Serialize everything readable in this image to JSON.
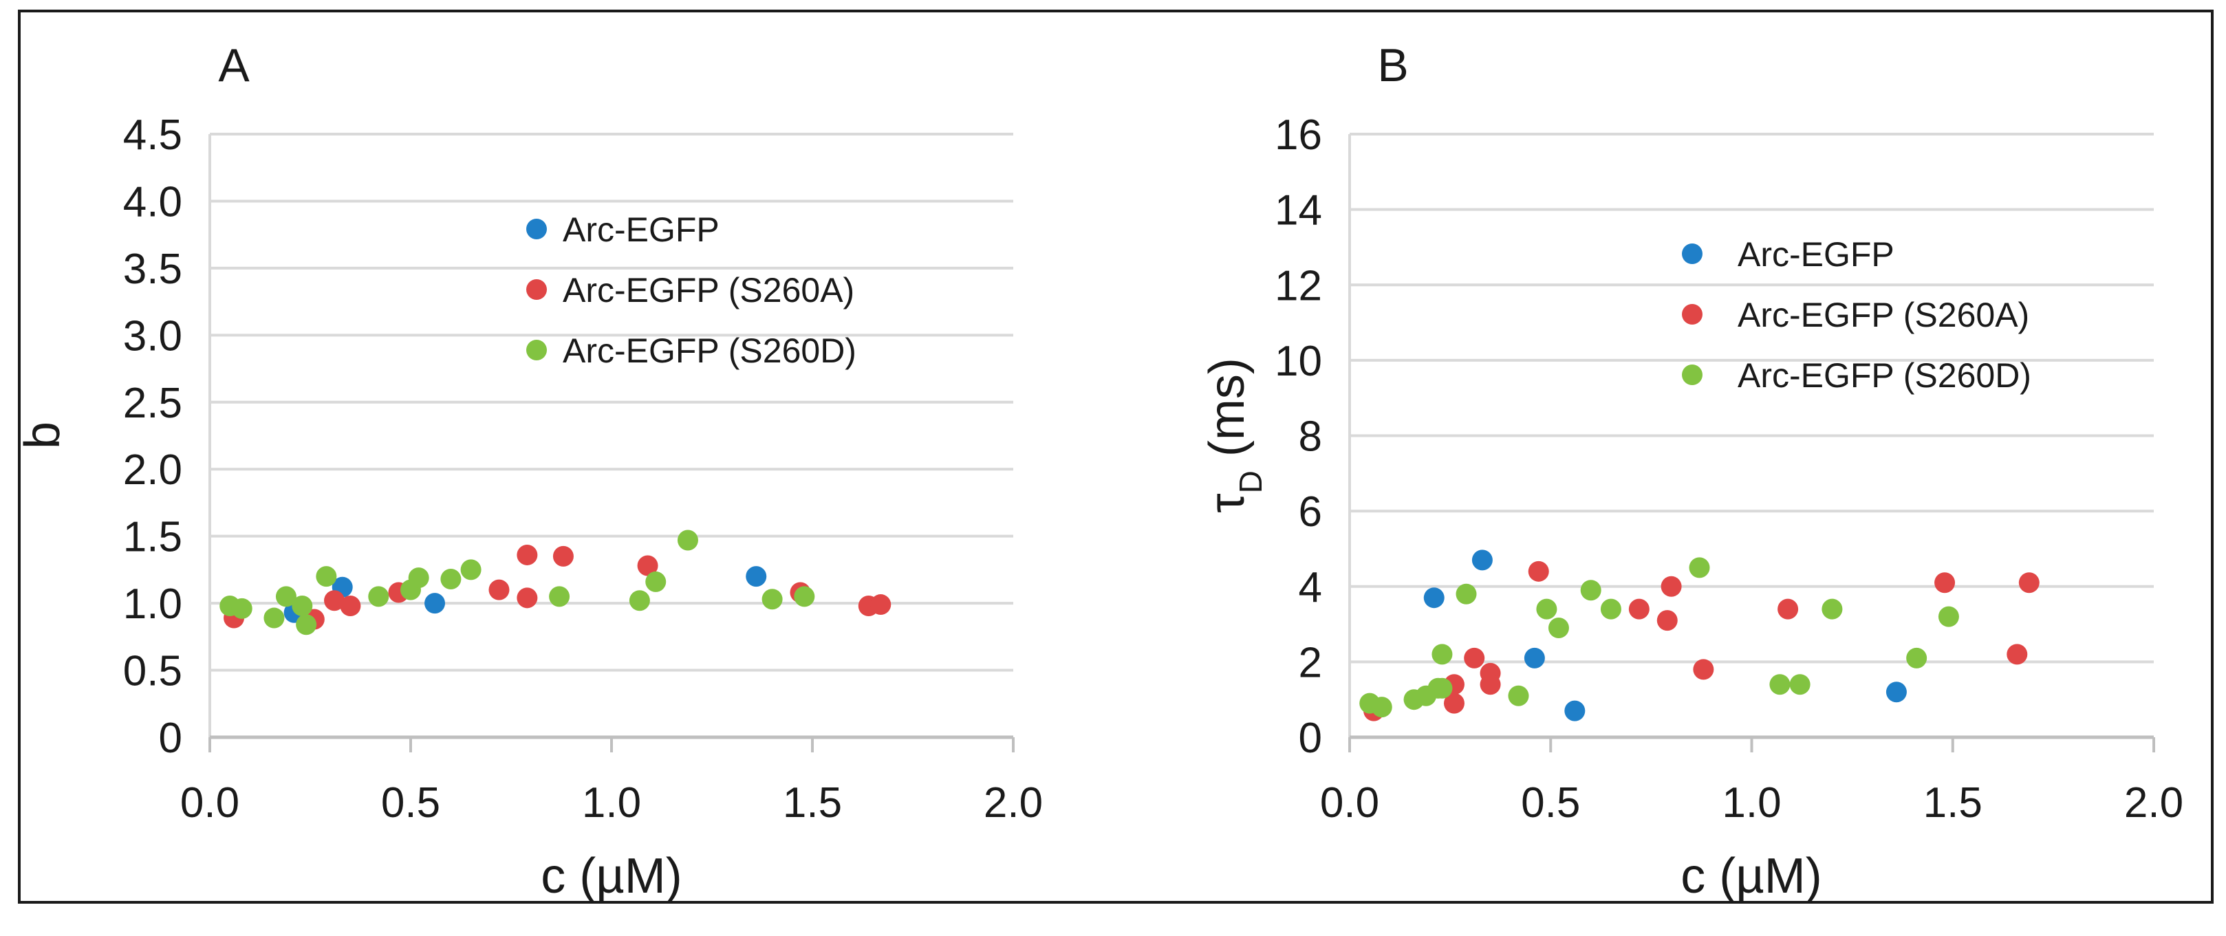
{
  "chart_data": [
    {
      "panel_label": "A",
      "type": "scatter",
      "xlabel": "c (µM)",
      "ylabel": "b",
      "xlim": [
        0,
        2
      ],
      "ylim": [
        0,
        4.5
      ],
      "x_ticks": [
        "0.0",
        "0.5",
        "1.0",
        "1.5",
        "2.0"
      ],
      "y_ticks": [
        "0",
        "0.5",
        "1.0",
        "1.5",
        "2.0",
        "2.5",
        "3.0",
        "3.5",
        "4.0",
        "4.5"
      ],
      "grid": true,
      "legend_position": "upper-center",
      "series": [
        {
          "name": "Arc-EGFP",
          "color": "#1f7fc8",
          "points": [
            [
              0.21,
              0.93
            ],
            [
              0.33,
              1.12
            ],
            [
              0.56,
              1.0
            ],
            [
              1.36,
              1.2
            ]
          ]
        },
        {
          "name": "Arc-EGFP (S260A)",
          "color": "#e04646",
          "points": [
            [
              0.06,
              0.89
            ],
            [
              0.26,
              0.88
            ],
            [
              0.31,
              1.02
            ],
            [
              0.35,
              0.98
            ],
            [
              0.47,
              1.08
            ],
            [
              0.72,
              1.1
            ],
            [
              0.79,
              1.04
            ],
            [
              0.79,
              1.36
            ],
            [
              0.88,
              1.35
            ],
            [
              1.09,
              1.28
            ],
            [
              1.47,
              1.08
            ],
            [
              1.64,
              0.98
            ],
            [
              1.67,
              0.99
            ]
          ]
        },
        {
          "name": "Arc-EGFP (S260D)",
          "color": "#82c341",
          "points": [
            [
              0.05,
              0.98
            ],
            [
              0.08,
              0.96
            ],
            [
              0.16,
              0.89
            ],
            [
              0.19,
              1.05
            ],
            [
              0.23,
              0.98
            ],
            [
              0.24,
              0.84
            ],
            [
              0.29,
              1.2
            ],
            [
              0.42,
              1.05
            ],
            [
              0.5,
              1.1
            ],
            [
              0.52,
              1.19
            ],
            [
              0.6,
              1.18
            ],
            [
              0.65,
              1.25
            ],
            [
              0.87,
              1.05
            ],
            [
              1.07,
              1.02
            ],
            [
              1.11,
              1.16
            ],
            [
              1.19,
              1.47
            ],
            [
              1.4,
              1.03
            ],
            [
              1.48,
              1.05
            ]
          ]
        }
      ]
    },
    {
      "panel_label": "B",
      "type": "scatter",
      "xlabel": "c (µM)",
      "ylabel": "τ",
      "ylabel_sub": "D",
      "ylabel_unit": " (ms)",
      "xlim": [
        0,
        2
      ],
      "ylim": [
        0,
        16
      ],
      "x_ticks": [
        "0.0",
        "0.5",
        "1.0",
        "1.5",
        "2.0"
      ],
      "y_ticks": [
        "0",
        "2",
        "4",
        "6",
        "8",
        "10",
        "12",
        "14",
        "16"
      ],
      "grid": true,
      "legend_position": "upper-right",
      "series": [
        {
          "name": "Arc-EGFP",
          "color": "#1f7fc8",
          "points": [
            [
              0.21,
              3.7
            ],
            [
              0.33,
              4.7
            ],
            [
              0.46,
              2.1
            ],
            [
              0.56,
              0.7
            ],
            [
              1.36,
              1.2
            ]
          ]
        },
        {
          "name": "Arc-EGFP (S260A)",
          "color": "#e04646",
          "points": [
            [
              0.06,
              0.7
            ],
            [
              0.26,
              1.4
            ],
            [
              0.26,
              0.9
            ],
            [
              0.31,
              2.1
            ],
            [
              0.35,
              1.7
            ],
            [
              0.35,
              1.4
            ],
            [
              0.47,
              4.4
            ],
            [
              0.72,
              3.4
            ],
            [
              0.79,
              3.1
            ],
            [
              0.8,
              4.0
            ],
            [
              0.88,
              1.8
            ],
            [
              1.09,
              3.4
            ],
            [
              1.48,
              4.1
            ],
            [
              1.66,
              2.2
            ],
            [
              1.69,
              4.1
            ]
          ]
        },
        {
          "name": "Arc-EGFP (S260D)",
          "color": "#82c341",
          "points": [
            [
              0.05,
              0.9
            ],
            [
              0.08,
              0.8
            ],
            [
              0.16,
              1.0
            ],
            [
              0.19,
              1.1
            ],
            [
              0.22,
              1.3
            ],
            [
              0.23,
              2.2
            ],
            [
              0.23,
              1.3
            ],
            [
              0.29,
              3.8
            ],
            [
              0.42,
              1.1
            ],
            [
              0.49,
              3.4
            ],
            [
              0.52,
              2.9
            ],
            [
              0.6,
              3.9
            ],
            [
              0.65,
              3.4
            ],
            [
              0.87,
              4.5
            ],
            [
              1.07,
              1.4
            ],
            [
              1.12,
              1.4
            ],
            [
              1.2,
              3.4
            ],
            [
              1.41,
              2.1
            ],
            [
              1.49,
              3.2
            ]
          ]
        }
      ]
    }
  ]
}
